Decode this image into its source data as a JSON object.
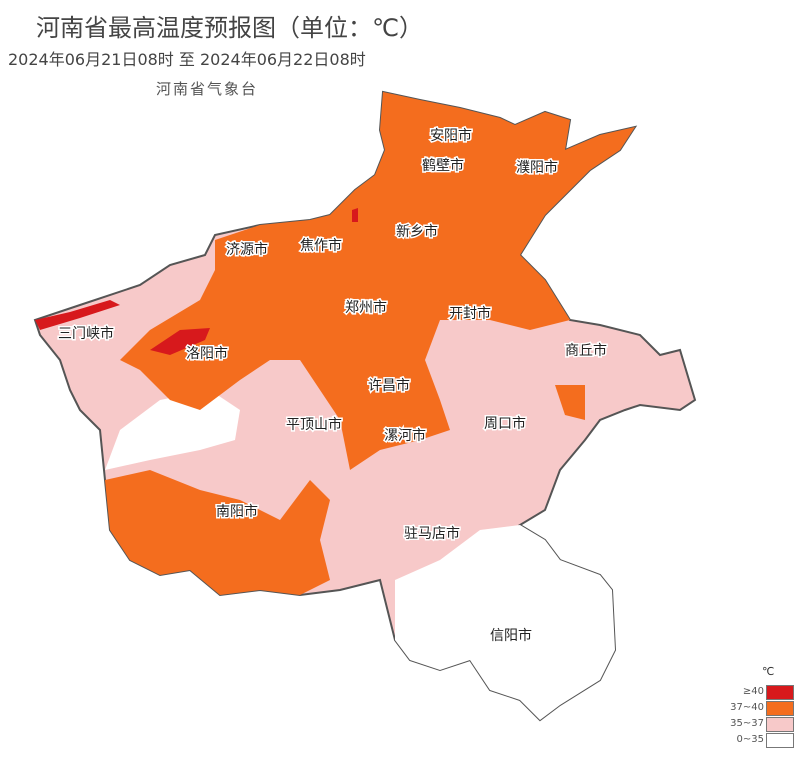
{
  "header": {
    "title": "河南省最高温度预报图（单位：℃）",
    "period": "2024年06月21日08时  至  2024年06月22日08时",
    "agency": "河南省气象台"
  },
  "cities": [
    "安阳市",
    "鹤壁市",
    "濮阳市",
    "新乡市",
    "焦作市",
    "济源市",
    "郑州市",
    "开封市",
    "商丘市",
    "三门峡市",
    "洛阳市",
    "许昌市",
    "平顶山市",
    "漯河市",
    "周口市",
    "南阳市",
    "驻马店市",
    "信阳市"
  ],
  "legend": {
    "unit": "℃",
    "items": [
      {
        "label": "≥40",
        "color": "#d7191c"
      },
      {
        "label": "37~40",
        "color": "#f46d1e"
      },
      {
        "label": "35~37",
        "color": "#f7c9c9"
      },
      {
        "label": "0~35",
        "color": "#ffffff"
      }
    ]
  }
}
